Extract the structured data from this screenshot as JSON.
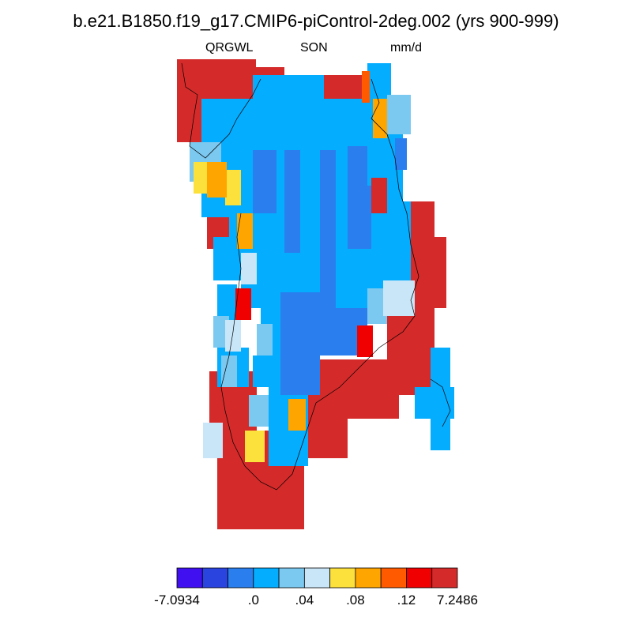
{
  "title": "b.e21.B1850.f19_g17.CMIP6-piControl-2deg.002 (yrs 900-999)",
  "left_string": "QRGWL",
  "center_string": "SON",
  "right_string": "mm/d",
  "colorbar": {
    "colors": [
      "#4010F0",
      "#2A44E0",
      "#2A7EEE",
      "#05ADFF",
      "#7BC8F0",
      "#C8E6F8",
      "#FCE03C",
      "#FFA500",
      "#FF5A00",
      "#F00000",
      "#D42A2A"
    ],
    "labels": [
      "-7.0934",
      ".0",
      ".04",
      ".08",
      ".12",
      "7.2486"
    ]
  }
}
